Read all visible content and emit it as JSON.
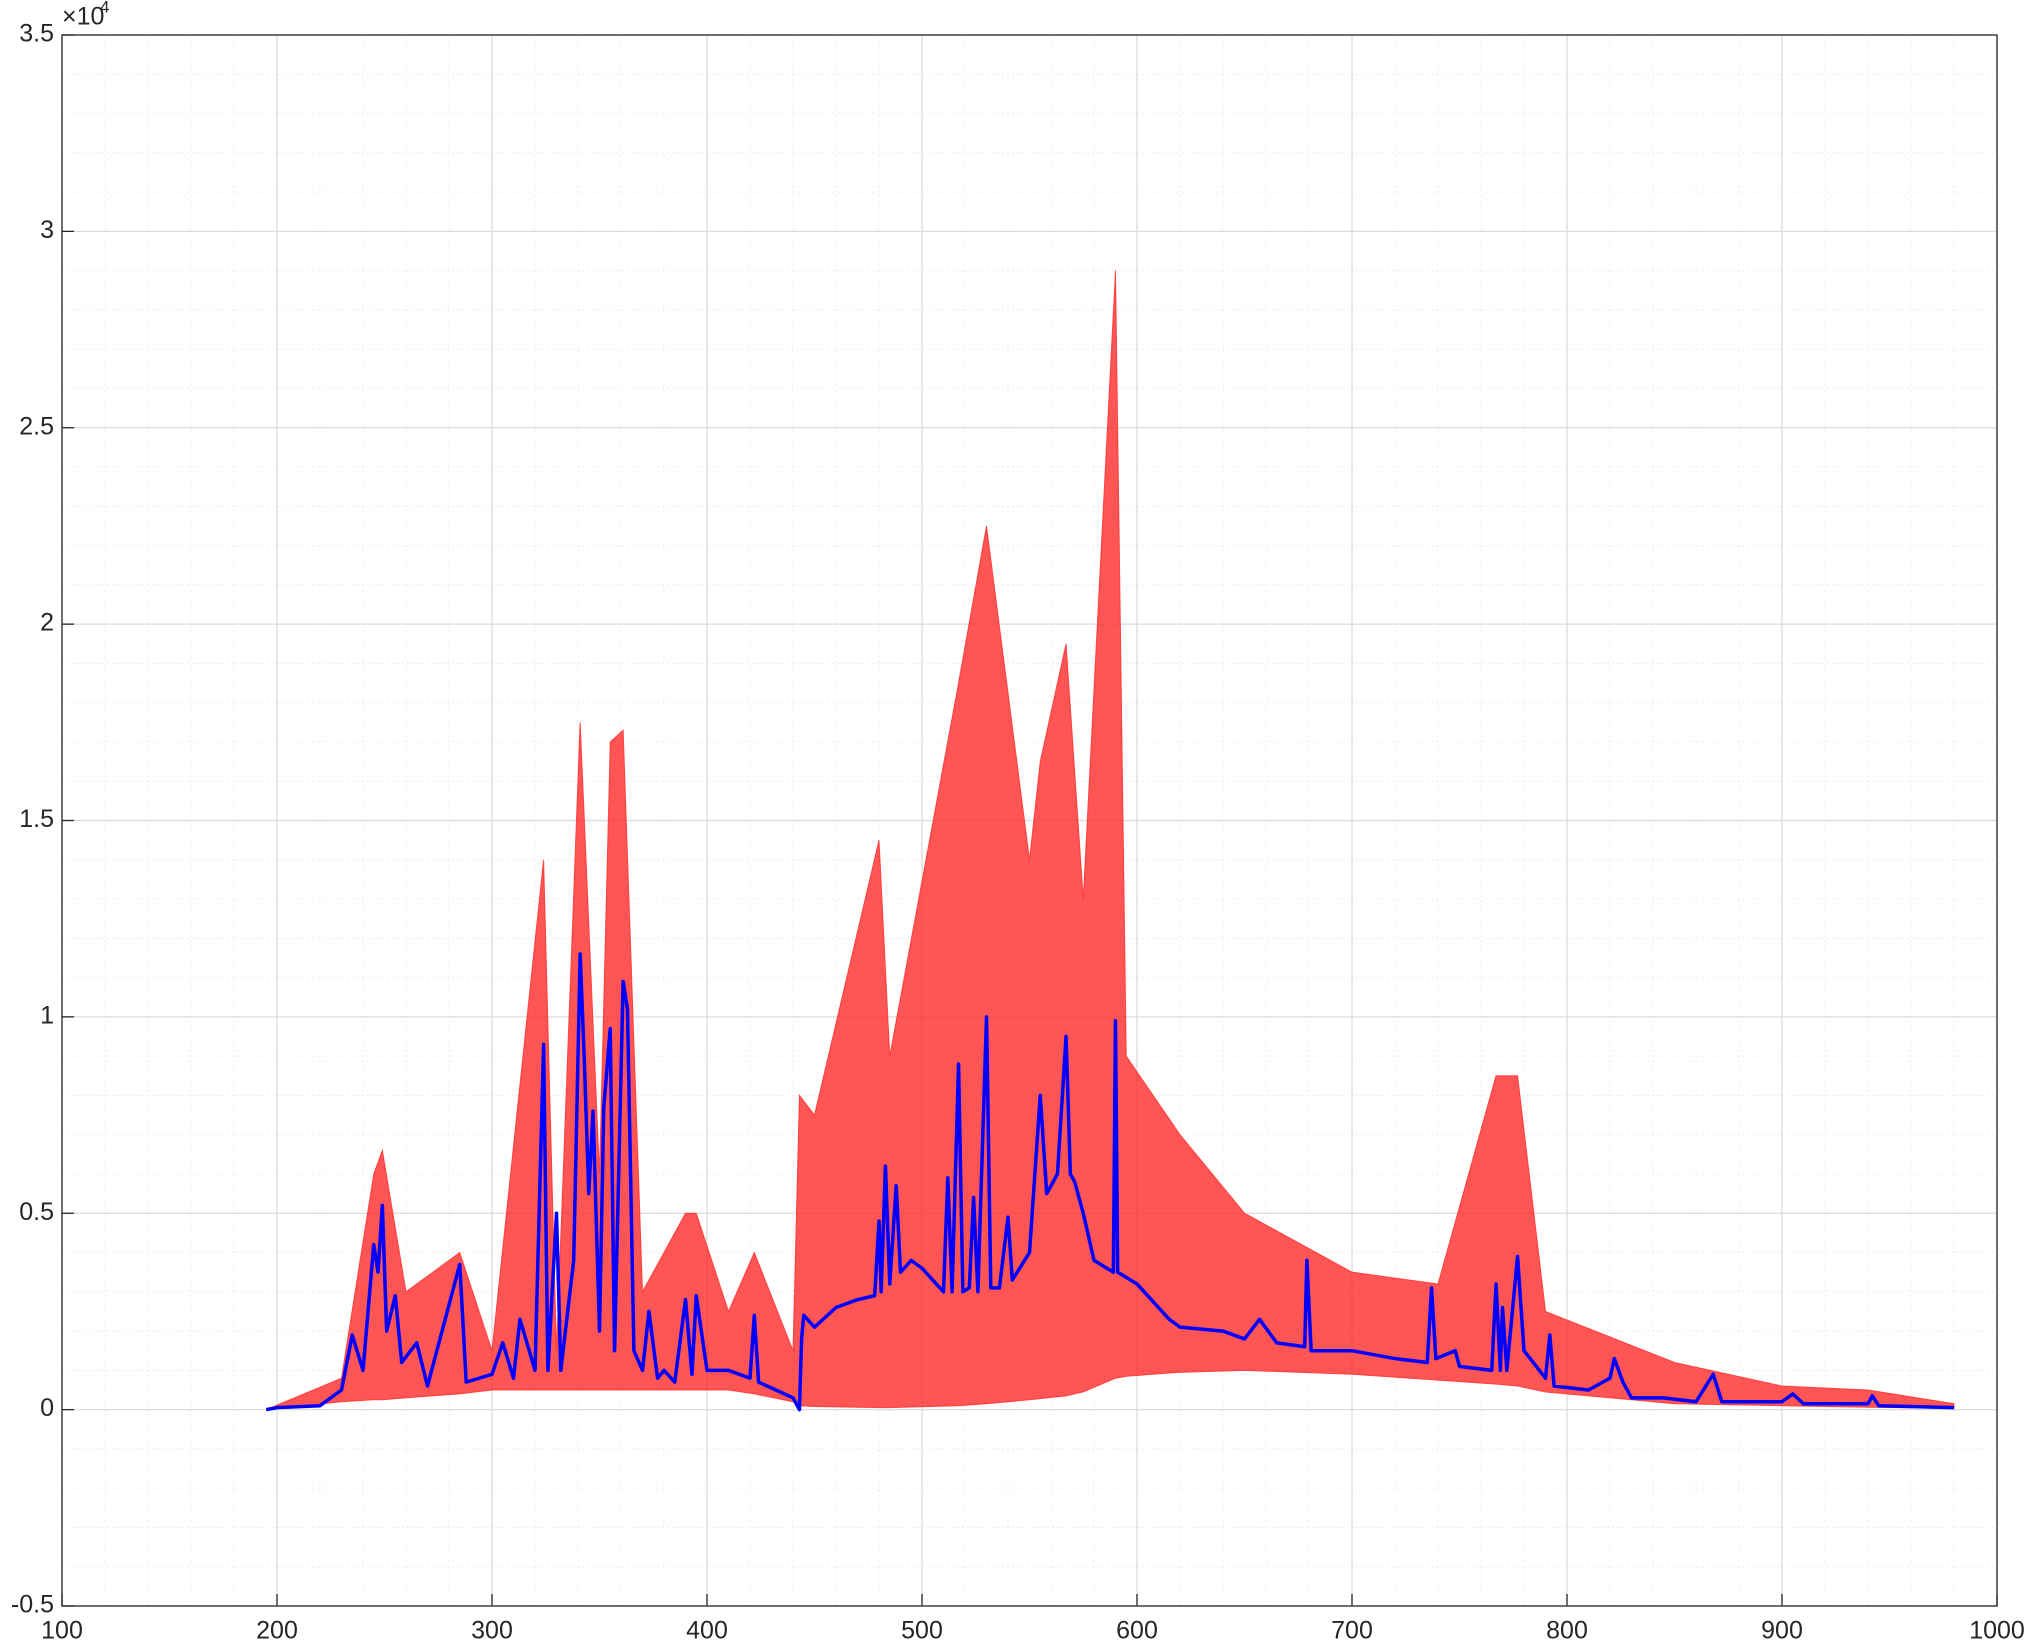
{
  "chart_data": {
    "type": "line",
    "y_multiplier": "×10",
    "y_multiplier_exponent": "4",
    "xlim": [
      100,
      1000
    ],
    "xticks": [
      100,
      200,
      300,
      400,
      500,
      600,
      700,
      800,
      900,
      1000
    ],
    "ylim": [
      -5000,
      35000
    ],
    "yticks": [
      {
        "value": -5000,
        "label": "-0.5"
      },
      {
        "value": 0,
        "label": "0"
      },
      {
        "value": 5000,
        "label": "0.5"
      },
      {
        "value": 10000,
        "label": "1"
      },
      {
        "value": 15000,
        "label": "1.5"
      },
      {
        "value": 20000,
        "label": "2"
      },
      {
        "value": 25000,
        "label": "2.5"
      },
      {
        "value": 30000,
        "label": "3"
      },
      {
        "value": 35000,
        "label": "3.5"
      }
    ],
    "grid": true,
    "minor_grid": true,
    "bands": [
      {
        "color": "#ff2a2a",
        "x": [
          195,
          230,
          245,
          249,
          260,
          285,
          300,
          324,
          330,
          341,
          350,
          355,
          361,
          370,
          390,
          395,
          410,
          422,
          440,
          443,
          450,
          480,
          485,
          517,
          530,
          550,
          555,
          567,
          575,
          590,
          595,
          620,
          650,
          700,
          740,
          767,
          777,
          790,
          850,
          900,
          940,
          980
        ],
        "upper": [
          0,
          800,
          6000,
          6600,
          3000,
          4000,
          1500,
          14000,
          1500,
          17500,
          6000,
          17000,
          17300,
          3000,
          5000,
          5000,
          2500,
          4000,
          1500,
          8000,
          7500,
          14500,
          9000,
          18500,
          22500,
          14000,
          16500,
          19500,
          13000,
          29000,
          9000,
          7000,
          5000,
          3500,
          3200,
          8500,
          8500,
          2500,
          1200,
          600,
          500,
          150
        ],
        "lower": [
          0,
          200,
          250,
          250,
          300,
          400,
          500,
          500,
          500,
          500,
          500,
          500,
          500,
          500,
          500,
          500,
          500,
          400,
          200,
          100,
          80,
          50,
          50,
          100,
          150,
          250,
          280,
          350,
          450,
          800,
          850,
          950,
          1000,
          900,
          750,
          650,
          600,
          450,
          150,
          100,
          60,
          30
        ]
      }
    ],
    "x": [
      195,
      200,
      220,
      230,
      235,
      240,
      245,
      247,
      249,
      251,
      255,
      258,
      265,
      270,
      285,
      288,
      300,
      305,
      310,
      313,
      320,
      324,
      326,
      330,
      332,
      338,
      341,
      343,
      345,
      347,
      350,
      352,
      355,
      357,
      361,
      363,
      366,
      370,
      373,
      377,
      380,
      385,
      390,
      393,
      395,
      400,
      410,
      420,
      422,
      424,
      440,
      443,
      444,
      445,
      450,
      460,
      470,
      478,
      480,
      481,
      483,
      485,
      488,
      490,
      495,
      500,
      505,
      510,
      512,
      514,
      517,
      519,
      522,
      524,
      526,
      530,
      532,
      536,
      540,
      542,
      550,
      555,
      558,
      563,
      567,
      569,
      571,
      575,
      580,
      589,
      590,
      591,
      600,
      610,
      615,
      620,
      640,
      650,
      657,
      665,
      678,
      679,
      681,
      700,
      720,
      735,
      737,
      739,
      748,
      750,
      765,
      767,
      769,
      770,
      772,
      777,
      780,
      790,
      792,
      794,
      810,
      820,
      822,
      826,
      830,
      845,
      860,
      868,
      872,
      900,
      905,
      910,
      940,
      942,
      945,
      980
    ],
    "series": [
      {
        "color": "#0000ff",
        "values": [
          0,
          50,
          100,
          500,
          1900,
          1000,
          4200,
          3500,
          5200,
          2000,
          2900,
          1200,
          1700,
          600,
          3700,
          700,
          900,
          1700,
          800,
          2300,
          1000,
          9300,
          1000,
          5000,
          1000,
          3800,
          11600,
          8800,
          5500,
          7600,
          2000,
          7700,
          9700,
          1500,
          10900,
          10200,
          1500,
          1000,
          2500,
          800,
          1000,
          700,
          2800,
          900,
          2900,
          1000,
          1000,
          800,
          2400,
          700,
          300,
          0,
          1800,
          2400,
          2100,
          2600,
          2800,
          2900,
          4800,
          3000,
          6200,
          3200,
          5700,
          3500,
          3800,
          3600,
          3300,
          3000,
          5900,
          3000,
          8800,
          3000,
          3100,
          5400,
          3000,
          10000,
          3100,
          3100,
          4900,
          3300,
          4000,
          8000,
          5500,
          6000,
          9500,
          6000,
          5800,
          5000,
          3800,
          3500,
          9900,
          3500,
          3200,
          2600,
          2300,
          2100,
          2000,
          1800,
          2300,
          1700,
          1600,
          3800,
          1500,
          1500,
          1300,
          1200,
          3100,
          1300,
          1500,
          1100,
          1000,
          3200,
          1000,
          2600,
          1000,
          3900,
          1500,
          800,
          1900,
          600,
          500,
          800,
          1300,
          700,
          300,
          300,
          200,
          900,
          200,
          200,
          400,
          150,
          150,
          350,
          100,
          50
        ]
      }
    ]
  }
}
